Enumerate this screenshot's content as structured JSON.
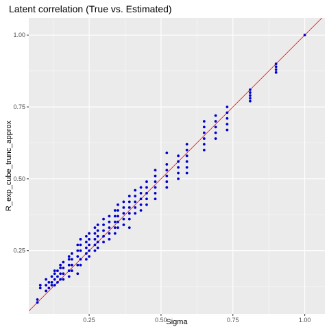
{
  "chart_data": {
    "type": "scatter",
    "title": "Latent correlation (True vs. Estimated)",
    "xlabel": "Sigma",
    "ylabel": "R_exp_cube_trunc_approx",
    "xlim": [
      0.04,
      1.07
    ],
    "ylim": [
      0.03,
      1.06
    ],
    "x_ticks": [
      0.25,
      0.5,
      0.75,
      1.0
    ],
    "x_tick_labels": [
      "0.25",
      "0.50",
      "0.75",
      "1.00"
    ],
    "y_ticks": [
      0.25,
      0.5,
      0.75,
      1.0
    ],
    "y_tick_labels": [
      "0.25",
      "0.50",
      "0.75",
      "1.00"
    ],
    "grid": true,
    "background": "#ebebeb",
    "point_color": "#0000cc",
    "line_color": "#ff0000",
    "reference_line": {
      "slope": 1,
      "intercept": 0
    },
    "columns": [
      {
        "x": 0.07,
        "y": [
          0.07,
          0.08
        ]
      },
      {
        "x": 0.08,
        "y": [
          0.12,
          0.13
        ]
      },
      {
        "x": 0.1,
        "y": [
          0.11,
          0.13,
          0.15
        ]
      },
      {
        "x": 0.11,
        "y": [
          0.12,
          0.14
        ]
      },
      {
        "x": 0.12,
        "y": [
          0.13,
          0.14,
          0.16
        ]
      },
      {
        "x": 0.13,
        "y": [
          0.13,
          0.15,
          0.17,
          0.18
        ]
      },
      {
        "x": 0.14,
        "y": [
          0.14,
          0.16,
          0.18
        ]
      },
      {
        "x": 0.15,
        "y": [
          0.15,
          0.17,
          0.19,
          0.2
        ]
      },
      {
        "x": 0.16,
        "y": [
          0.15,
          0.17,
          0.19,
          0.21
        ]
      },
      {
        "x": 0.18,
        "y": [
          0.16,
          0.18,
          0.2,
          0.22,
          0.23
        ]
      },
      {
        "x": 0.19,
        "y": [
          0.18,
          0.2,
          0.22,
          0.24
        ]
      },
      {
        "x": 0.21,
        "y": [
          0.17,
          0.2,
          0.23,
          0.25,
          0.27
        ]
      },
      {
        "x": 0.22,
        "y": [
          0.2,
          0.22,
          0.25,
          0.27,
          0.29
        ]
      },
      {
        "x": 0.24,
        "y": [
          0.22,
          0.24,
          0.26,
          0.28,
          0.3
        ]
      },
      {
        "x": 0.25,
        "y": [
          0.23,
          0.25,
          0.27,
          0.29,
          0.31
        ]
      },
      {
        "x": 0.27,
        "y": [
          0.25,
          0.27,
          0.29,
          0.31,
          0.33
        ]
      },
      {
        "x": 0.28,
        "y": [
          0.26,
          0.28,
          0.3,
          0.32,
          0.34
        ]
      },
      {
        "x": 0.3,
        "y": [
          0.28,
          0.3,
          0.32,
          0.34,
          0.36
        ]
      },
      {
        "x": 0.32,
        "y": [
          0.29,
          0.31,
          0.33,
          0.35,
          0.37
        ]
      },
      {
        "x": 0.34,
        "y": [
          0.31,
          0.33,
          0.35,
          0.37,
          0.39
        ]
      },
      {
        "x": 0.35,
        "y": [
          0.33,
          0.35,
          0.37,
          0.39,
          0.41
        ]
      },
      {
        "x": 0.37,
        "y": [
          0.34,
          0.36,
          0.38,
          0.4,
          0.42
        ]
      },
      {
        "x": 0.39,
        "y": [
          0.33,
          0.36,
          0.38,
          0.4,
          0.42,
          0.44
        ]
      },
      {
        "x": 0.41,
        "y": [
          0.38,
          0.4,
          0.42,
          0.44,
          0.46
        ]
      },
      {
        "x": 0.43,
        "y": [
          0.39,
          0.41,
          0.43,
          0.45,
          0.47
        ]
      },
      {
        "x": 0.45,
        "y": [
          0.41,
          0.43,
          0.45,
          0.47,
          0.49
        ]
      },
      {
        "x": 0.48,
        "y": [
          0.43,
          0.45,
          0.47,
          0.49,
          0.51,
          0.53
        ]
      },
      {
        "x": 0.52,
        "y": [
          0.47,
          0.49,
          0.51,
          0.53,
          0.55,
          0.59
        ]
      },
      {
        "x": 0.56,
        "y": [
          0.5,
          0.52,
          0.54,
          0.56,
          0.58
        ]
      },
      {
        "x": 0.59,
        "y": [
          0.52,
          0.54,
          0.56,
          0.58,
          0.6,
          0.62
        ]
      },
      {
        "x": 0.65,
        "y": [
          0.6,
          0.62,
          0.64,
          0.66,
          0.68,
          0.7
        ]
      },
      {
        "x": 0.69,
        "y": [
          0.64,
          0.66,
          0.68,
          0.7,
          0.72
        ]
      },
      {
        "x": 0.73,
        "y": [
          0.67,
          0.69,
          0.71,
          0.73,
          0.75
        ]
      },
      {
        "x": 0.81,
        "y": [
          0.77,
          0.78,
          0.79,
          0.8,
          0.81
        ]
      },
      {
        "x": 0.9,
        "y": [
          0.87,
          0.88,
          0.89,
          0.9
        ]
      },
      {
        "x": 1.0,
        "y": [
          1.0
        ]
      }
    ]
  }
}
